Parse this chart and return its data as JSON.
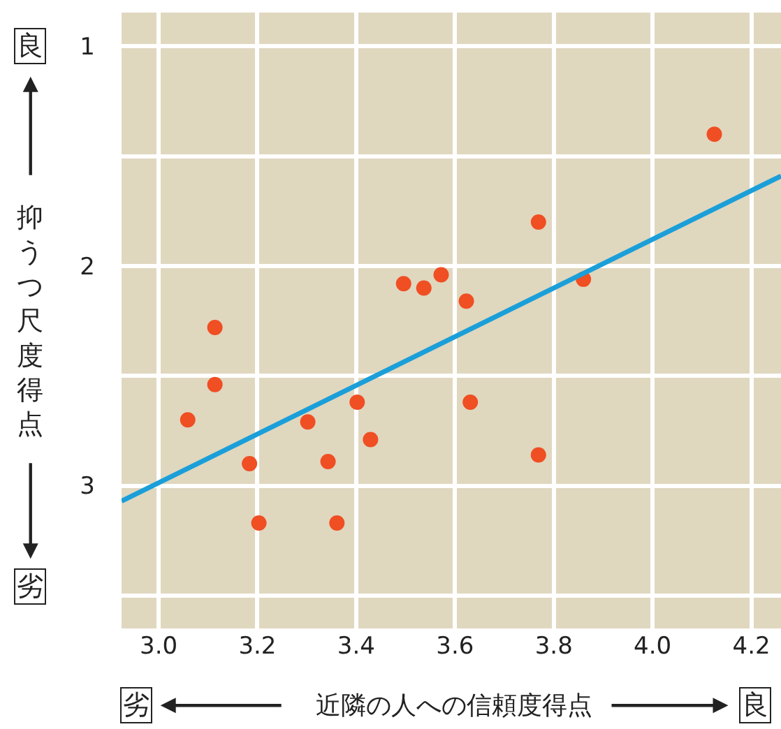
{
  "chart_data": {
    "type": "scatter",
    "xlabel": "近隣の人への信頼度得点",
    "ylabel": "抑うつ尺度得点",
    "annotations": [
      "良",
      "劣",
      "劣",
      "良"
    ],
    "xlim": [
      2.925,
      4.26
    ],
    "ylim": [
      3.65,
      0.846
    ],
    "xticks": [
      {
        "value": 3.0,
        "label": "3.0"
      },
      {
        "value": 3.2,
        "label": "3.2"
      },
      {
        "value": 3.4,
        "label": "3.4"
      },
      {
        "value": 3.6,
        "label": "3.6"
      },
      {
        "value": 3.8,
        "label": "3.8"
      },
      {
        "value": 4.0,
        "label": "4.0"
      },
      {
        "value": 4.2,
        "label": "4.2"
      }
    ],
    "yticks": [
      1,
      {
        "value": 1.5,
        "label": null
      },
      2,
      {
        "value": 2.5,
        "label": null
      },
      3,
      {
        "value": 3.5,
        "label": null
      }
    ],
    "grid": true,
    "legend": false,
    "series": [
      {
        "marker": "circle",
        "color": "#f04e23",
        "x": [
          3.059,
          3.114,
          3.114,
          3.184,
          3.203,
          3.302,
          3.343,
          3.361,
          3.402,
          3.429,
          3.496,
          3.537,
          3.572,
          3.623,
          3.631,
          3.769,
          3.86,
          4.125,
          3.769
        ],
        "values": [
          2.7,
          2.28,
          2.54,
          2.9,
          3.17,
          2.71,
          2.89,
          3.17,
          2.62,
          2.79,
          2.08,
          2.1,
          2.04,
          2.16,
          2.62,
          1.8,
          2.06,
          1.4,
          2.86
        ]
      },
      {
        "type": "line",
        "color": "#1a9fd9",
        "x": [
          2.925,
          4.26
        ],
        "values": [
          3.07,
          1.59
        ]
      }
    ]
  }
}
